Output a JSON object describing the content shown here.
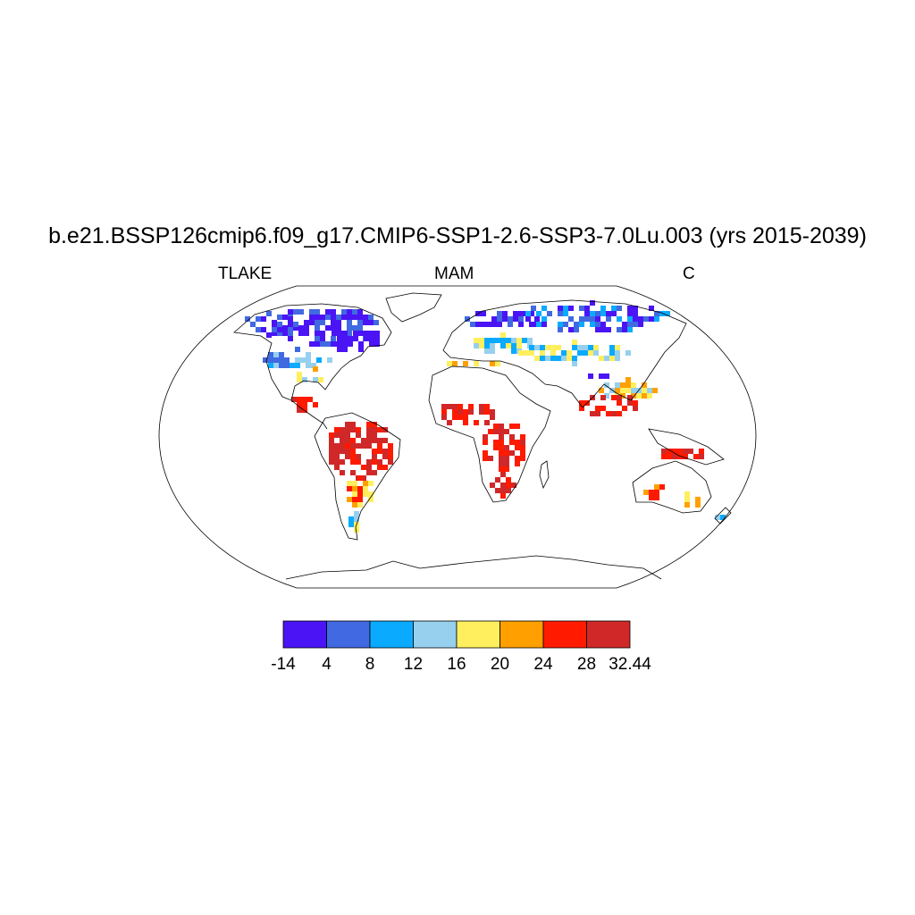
{
  "title": "b.e21.BSSP126cmip6.f09_g17.CMIP6-SSP1-2.6-SSP3-7.0Lu.003 (yrs 2015-2039)",
  "subtitle_left": "TLAKE",
  "subtitle_center": "MAM",
  "subtitle_right": "C",
  "colorbar": {
    "labels": [
      "-14",
      "4",
      "8",
      "12",
      "16",
      "20",
      "24",
      "28",
      "32.44"
    ],
    "colors": [
      "#4a14f5",
      "#4169e1",
      "#0aaaff",
      "#96d0ee",
      "#ffef5e",
      "#ffa000",
      "#ff1a00",
      "#d02828"
    ]
  }
}
